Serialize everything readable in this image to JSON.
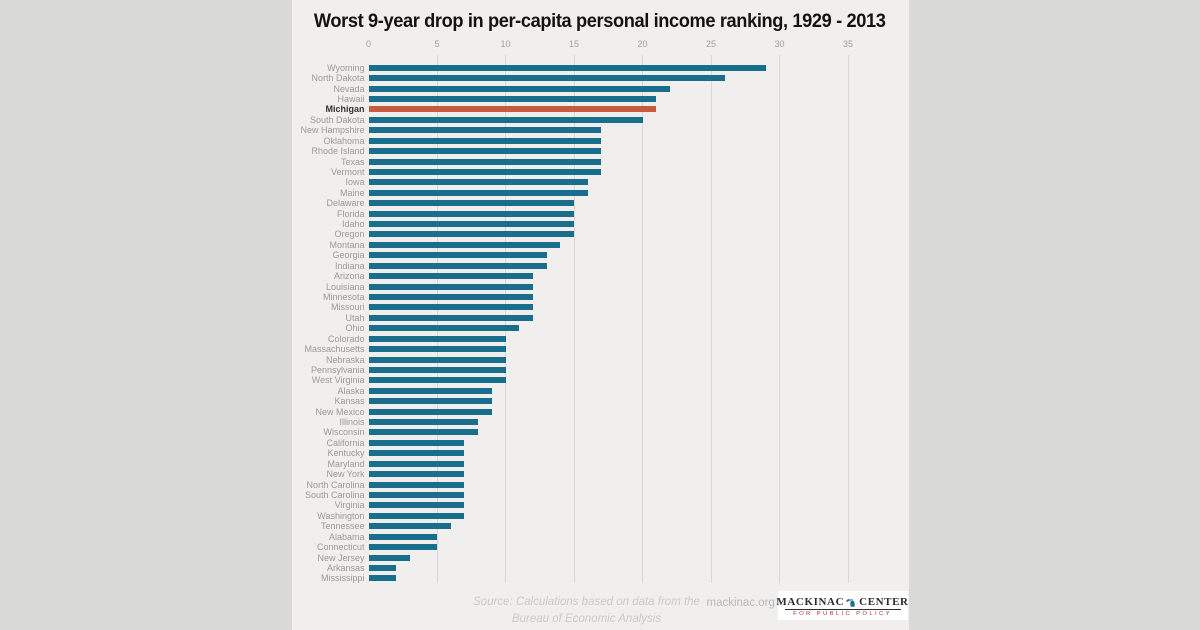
{
  "page": {
    "background": "#d9d9d8",
    "panel_background": "#f0efed"
  },
  "title": "Worst 9-year drop in per-capita personal income ranking, 1929 - 2013",
  "chart_data": {
    "type": "bar",
    "orientation": "horizontal",
    "title": "Worst 9-year drop in per-capita personal income ranking, 1929 - 2013",
    "xlabel": "",
    "ylabel": "",
    "xlim": [
      0,
      35
    ],
    "x_ticks": [
      0,
      5,
      10,
      15,
      20,
      25,
      30,
      35
    ],
    "grid": "vertical-gridlines-at-ticks",
    "legend": "none",
    "bar_color": "#196e8c",
    "highlight_category": "Michigan",
    "highlight_color": "#c75b40",
    "categories": [
      "Wyoming",
      "North Dakota",
      "Nevada",
      "Hawaii",
      "Michigan",
      "South Dakota",
      "New Hampshire",
      "Oklahoma",
      "Rhode Island",
      "Texas",
      "Vermont",
      "Iowa",
      "Maine",
      "Delaware",
      "Florida",
      "Idaho",
      "Oregon",
      "Montana",
      "Georgia",
      "Indiana",
      "Arizona",
      "Louisiana",
      "Minnesota",
      "Missouri",
      "Utah",
      "Ohio",
      "Colorado",
      "Massachusetts",
      "Nebraska",
      "Pennsylvania",
      "West Virginia",
      "Alaska",
      "Kansas",
      "New Mexico",
      "Illinois",
      "Wisconsin",
      "California",
      "Kentucky",
      "Maryland",
      "New York",
      "North Carolina",
      "South Carolina",
      "Virginia",
      "Washington",
      "Tennessee",
      "Alabama",
      "Connecticut",
      "New Jersey",
      "Arkansas",
      "Mississippi"
    ],
    "values": [
      29,
      26,
      22,
      21,
      21,
      20,
      17,
      17,
      17,
      17,
      17,
      16,
      16,
      15,
      15,
      15,
      15,
      14,
      13,
      13,
      12,
      12,
      12,
      12,
      12,
      11,
      10,
      10,
      10,
      10,
      10,
      9,
      9,
      9,
      8,
      8,
      7,
      7,
      7,
      7,
      7,
      7,
      7,
      7,
      6,
      5,
      5,
      3,
      2,
      2
    ]
  },
  "footer": {
    "source_line1": "Source: Calculations based on data from the",
    "source_line2": "Bureau of Economic Analysis",
    "website": "mackinac.org",
    "logo": {
      "word_left": "MACKINAC",
      "word_right": "CENTER",
      "tagline": "FOR PUBLIC POLICY",
      "icon": "michigan-state-icon"
    }
  }
}
